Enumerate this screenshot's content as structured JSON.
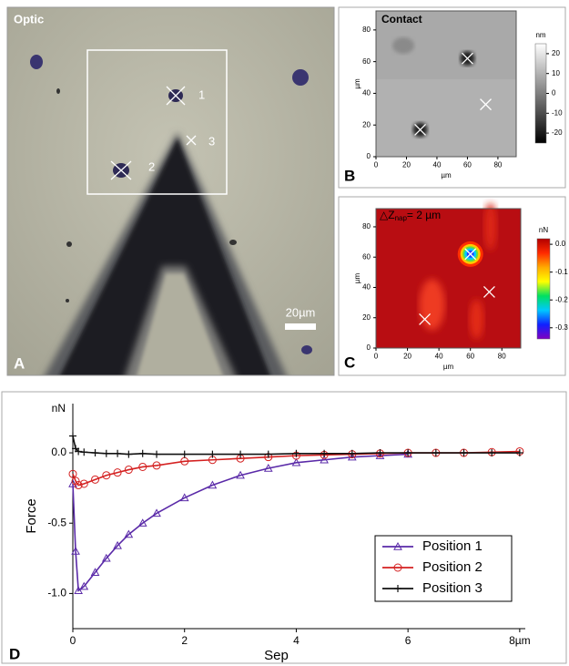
{
  "panel_a": {
    "label": "A",
    "title": "Optic",
    "markers": [
      "1",
      "2",
      "3"
    ],
    "scale_bar": "20µm"
  },
  "chart_data": [
    {
      "type": "heatmap",
      "label": "B",
      "title": "Contact",
      "xlabel": "µm",
      "ylabel": "µm",
      "xlim": [
        0,
        92
      ],
      "ylim": [
        0,
        92
      ],
      "xticks": [
        0,
        20,
        40,
        60,
        80
      ],
      "yticks": [
        0,
        20,
        40,
        60,
        80
      ],
      "markers": {
        "x": [
          60,
          29,
          72
        ],
        "y": [
          62,
          17,
          33
        ]
      },
      "colorbar": {
        "label": "nm",
        "lim": [
          -25,
          25
        ],
        "ticks": [
          20,
          10,
          0,
          -10,
          -20
        ],
        "colors": [
          "#ffffff",
          "#000000"
        ]
      }
    },
    {
      "type": "heatmap",
      "label": "C",
      "title": "△Z",
      "title_sub": "nap",
      "title_rest": "= 2 µm",
      "xlabel": "µm",
      "ylabel": "µm",
      "xlim": [
        0,
        92
      ],
      "ylim": [
        0,
        92
      ],
      "xticks": [
        0,
        20,
        40,
        60,
        80
      ],
      "yticks": [
        0,
        20,
        40,
        60,
        80
      ],
      "markers": {
        "x": [
          60,
          31,
          72
        ],
        "y": [
          62,
          19,
          37
        ]
      },
      "colorbar": {
        "label": "nN",
        "lim": [
          -0.34,
          0.02
        ],
        "ticks": [
          {
            "value": 0,
            "label": "0.0"
          },
          -0.1,
          -0.2,
          -0.3
        ],
        "colors": [
          "#b00000",
          "#ff2a00",
          "#ffaa00",
          "#ffff00",
          "#00e060",
          "#00c8ff",
          "#1020ff",
          "#8000c0"
        ]
      }
    },
    {
      "type": "line",
      "label": "D",
      "xlabel": "Sep",
      "ylabel": "Force",
      "y_unit": "nN",
      "xlim": [
        0,
        8.1
      ],
      "ylim": [
        -1.25,
        0.35
      ],
      "xticks": [
        0,
        2,
        4,
        6,
        {
          "value": 8,
          "label": "8µm"
        }
      ],
      "yticks": [
        {
          "value": -1,
          "label": "-1.0"
        },
        {
          "value": -0.5,
          "label": "-0.5"
        },
        {
          "value": 0,
          "label": "0.0"
        }
      ],
      "x": [
        0,
        0.05,
        0.1,
        0.2,
        0.4,
        0.6,
        0.8,
        1,
        1.25,
        1.5,
        2,
        2.5,
        3,
        3.5,
        4,
        4.5,
        5,
        5.5,
        6,
        6.5,
        7,
        7.5,
        8
      ],
      "legend": "lower right",
      "series": [
        {
          "name": "Position 1",
          "color": "#5a2aa8",
          "marker": "triangle",
          "values": [
            -0.22,
            -0.7,
            -0.98,
            -0.95,
            -0.85,
            -0.75,
            -0.66,
            -0.58,
            -0.5,
            -0.43,
            -0.32,
            -0.23,
            -0.16,
            -0.11,
            -0.07,
            -0.05,
            -0.03,
            -0.02,
            -0.01,
            null,
            null,
            null,
            null
          ]
        },
        {
          "name": "Position 2",
          "color": "#d42020",
          "marker": "circle",
          "values": [
            -0.15,
            -0.2,
            -0.23,
            -0.22,
            -0.19,
            -0.16,
            -0.14,
            -0.12,
            -0.1,
            -0.09,
            -0.06,
            -0.05,
            -0.04,
            -0.03,
            -0.02,
            -0.015,
            -0.01,
            -0.005,
            0,
            0,
            0,
            0.005,
            0.01
          ]
        },
        {
          "name": "Position 3",
          "color": "#111111",
          "marker": "plus",
          "values": [
            0.12,
            0.03,
            0.01,
            0.005,
            0,
            -0.005,
            -0.005,
            -0.01,
            -0.005,
            -0.01,
            -0.01,
            -0.01,
            -0.01,
            -0.01,
            -0.005,
            -0.005,
            -0.005,
            0,
            0,
            0,
            0,
            0,
            0
          ]
        }
      ]
    }
  ]
}
